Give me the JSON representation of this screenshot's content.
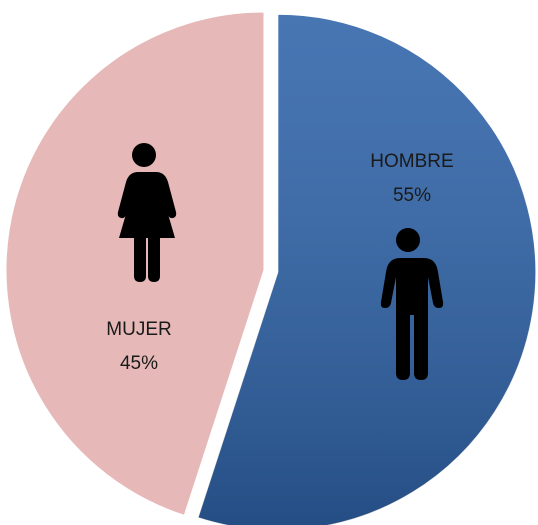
{
  "chart_data": {
    "type": "pie",
    "categories": [
      "HOMBRE",
      "MUJER"
    ],
    "values": [
      55,
      45
    ],
    "value_labels": [
      "55%",
      "45%"
    ],
    "colors": [
      "#2e63a9",
      "#e6b9b8"
    ]
  }
}
